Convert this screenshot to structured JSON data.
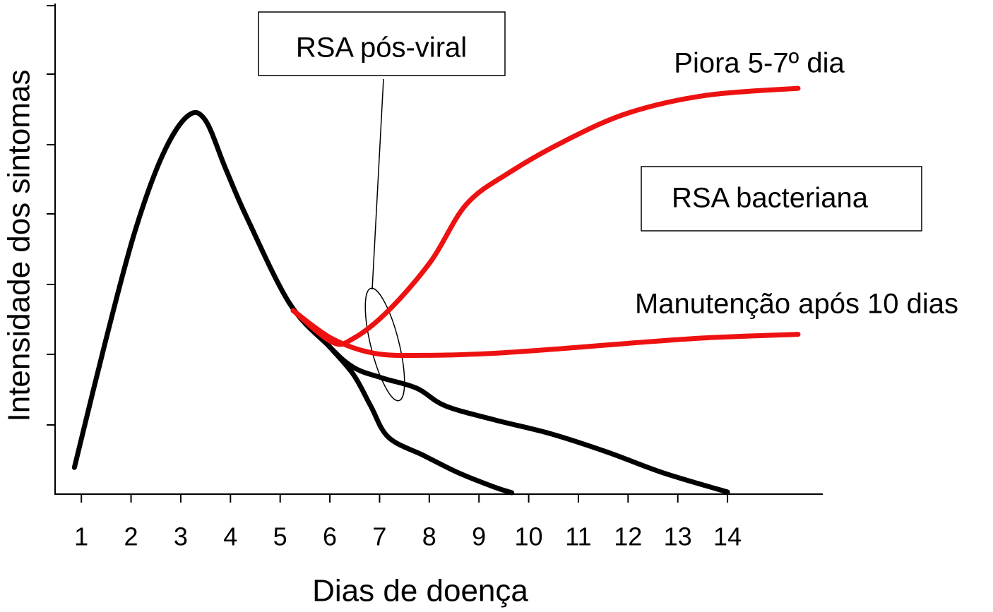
{
  "chart_data": {
    "type": "line",
    "xlabel": "Dias de doença",
    "ylabel": "Intensidade dos sintomas",
    "annotations": [
      "RSA pós-viral",
      "Piora 5-7º dia",
      "RSA bacteriana",
      "Manutenção após 10 dias"
    ],
    "xlim": [
      0.5,
      15.42
    ],
    "ylim": [
      0,
      7
    ],
    "xticks": [
      1,
      2,
      3,
      4,
      5,
      6,
      7,
      8,
      9,
      10,
      11,
      12,
      13,
      14
    ],
    "series": [
      {
        "color": "#000000",
        "x": [
          0.86,
          1.5,
          2.07,
          2.63,
          3.13,
          3.49,
          3.91,
          4.34,
          5.19,
          5.97,
          6.47,
          7.04,
          7.75,
          8.32,
          9.31,
          10.45,
          11.58,
          12.72,
          14.0
        ],
        "values": [
          0.38,
          2.22,
          3.73,
          4.83,
          5.39,
          5.34,
          4.63,
          3.93,
          2.72,
          2.12,
          1.81,
          1.66,
          1.51,
          1.26,
          1.06,
          0.86,
          0.6,
          0.3,
          0.03
        ]
      },
      {
        "color": "#000000",
        "x": [
          5.97,
          6.47,
          6.82,
          7.18,
          7.89,
          8.6,
          9.31,
          9.66
        ],
        "values": [
          2.12,
          1.71,
          1.26,
          0.81,
          0.55,
          0.3,
          0.1,
          0.02
        ]
      },
      {
        "color": "#ee1111",
        "x": [
          5.26,
          6.04,
          6.47,
          7.18,
          8.03,
          8.74,
          9.59,
          10.73,
          12.01,
          13.57,
          15.42
        ],
        "values": [
          2.62,
          2.17,
          2.22,
          2.62,
          3.32,
          4.13,
          4.58,
          5.04,
          5.44,
          5.69,
          5.79
        ]
      },
      {
        "color": "#ee1111",
        "x": [
          5.26,
          6.04,
          6.89,
          7.89,
          9.31,
          10.73,
          12.15,
          13.57,
          15.42
        ],
        "values": [
          2.62,
          2.22,
          2.01,
          1.98,
          2.01,
          2.08,
          2.16,
          2.23,
          2.28
        ]
      }
    ]
  }
}
